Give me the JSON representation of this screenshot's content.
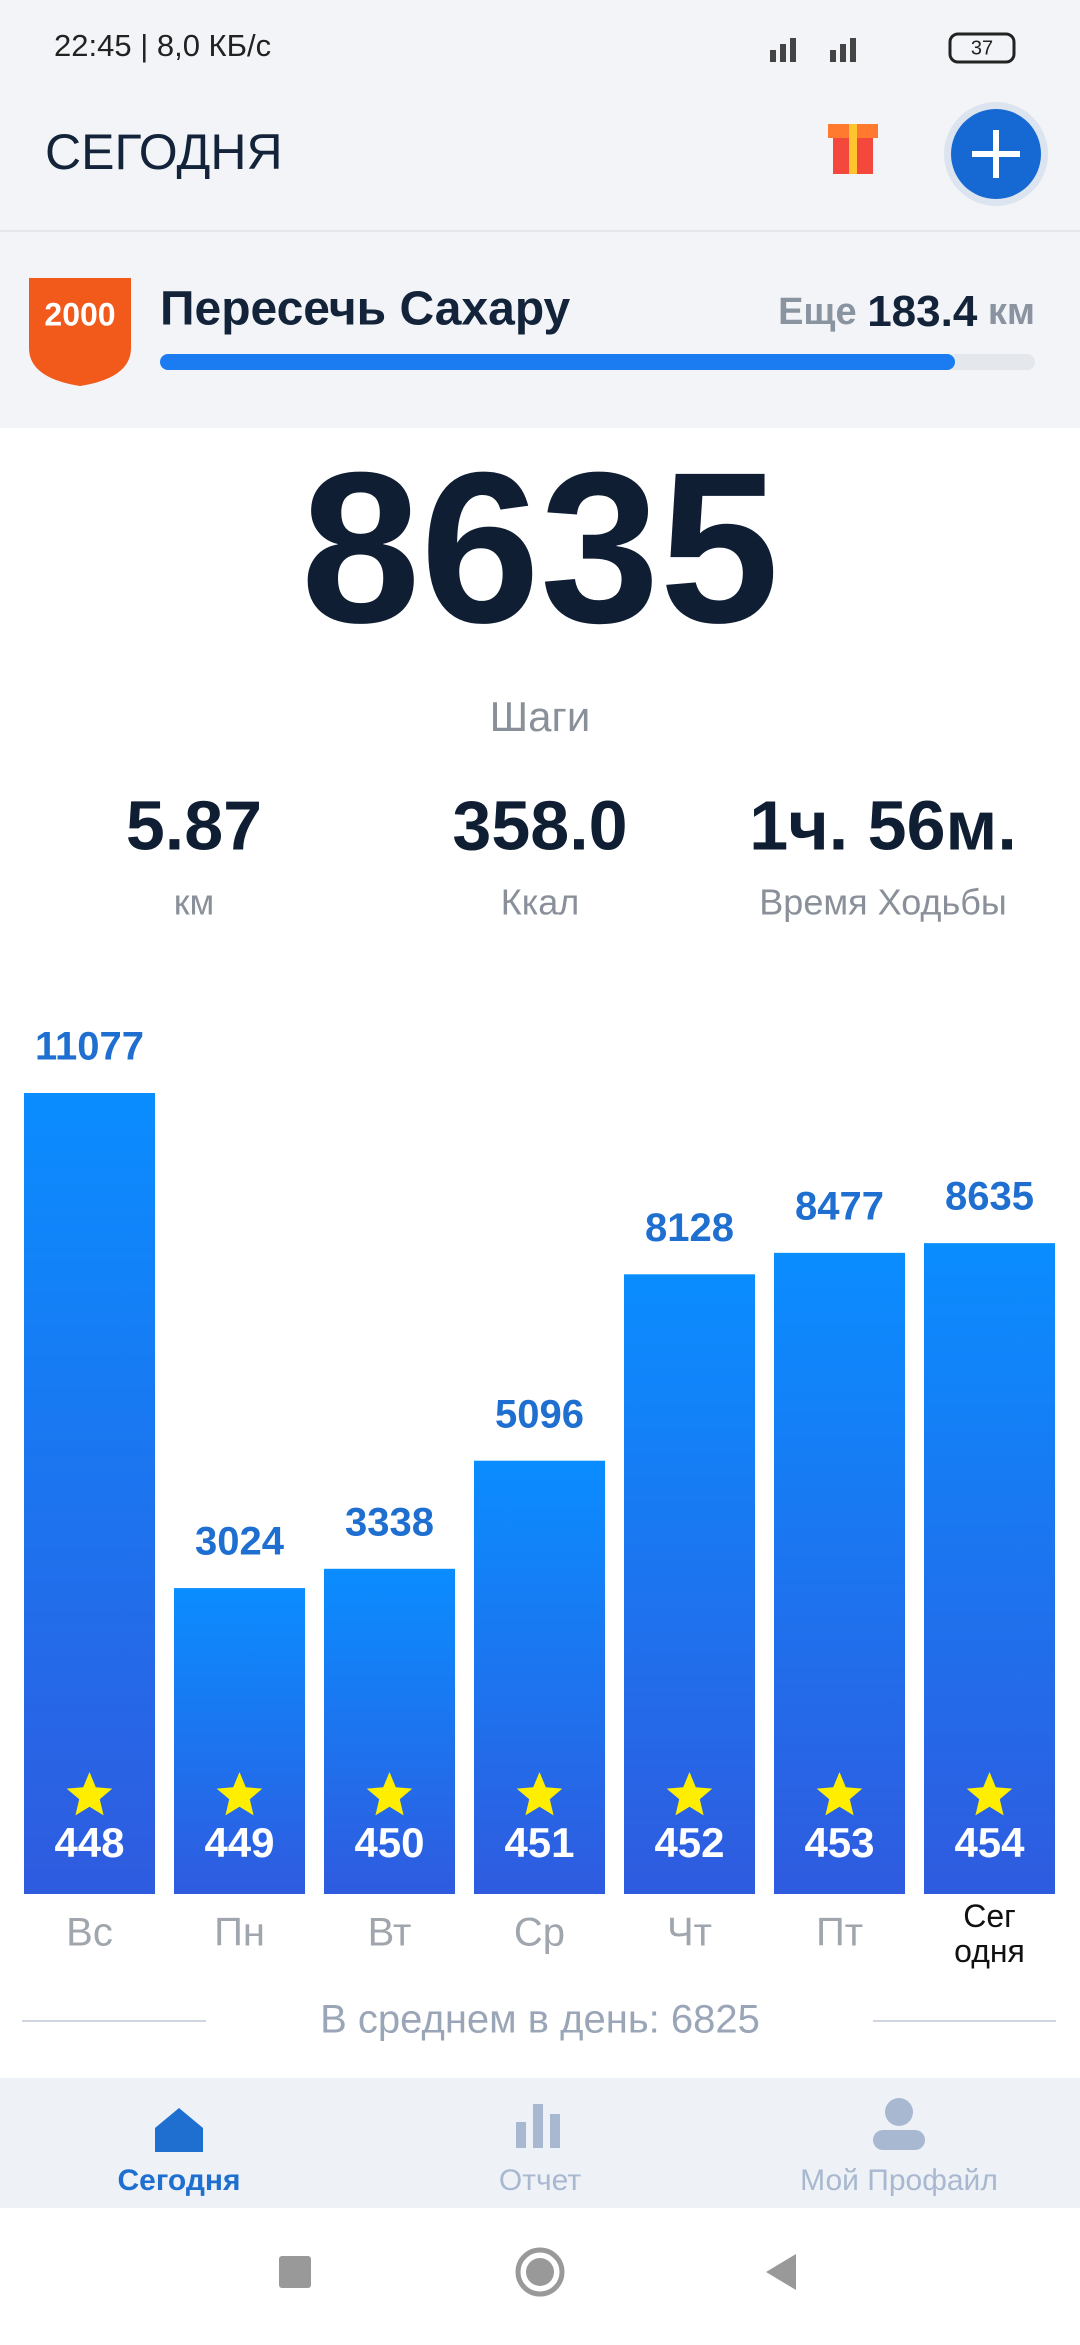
{
  "status_bar": {
    "left": "22:45 | 8,0 КБ/с",
    "battery": "37"
  },
  "header": {
    "title": "СЕГОДНЯ"
  },
  "challenge": {
    "badge": "2000",
    "title": "Пересечь Сахару",
    "remaining_prefix": "Еще",
    "remaining_value": "183.4",
    "remaining_unit": "км"
  },
  "summary": {
    "steps": "8635",
    "steps_label": "Шаги",
    "stats": [
      {
        "value": "5.87",
        "label": "км"
      },
      {
        "value": "358.0",
        "label": "Ккал"
      },
      {
        "value": "1ч. 56м.",
        "label": "Время Ходьбы"
      }
    ]
  },
  "chart_data": {
    "type": "bar",
    "categories": [
      "Вс",
      "Пн",
      "Вт",
      "Ср",
      "Чт",
      "Пт",
      "Сег\nодня"
    ],
    "values": [
      11077,
      3024,
      3338,
      5096,
      8128,
      8477,
      8635
    ],
    "badges": [
      448,
      449,
      450,
      451,
      452,
      453,
      454
    ],
    "gradient": [
      "#0a8dff",
      "#2f5bdf"
    ],
    "label_color": "#1f6fd1"
  },
  "average": "В среднем в день: 6825",
  "nav": [
    "Сегодня",
    "Отчет",
    "Мой Профайл"
  ]
}
